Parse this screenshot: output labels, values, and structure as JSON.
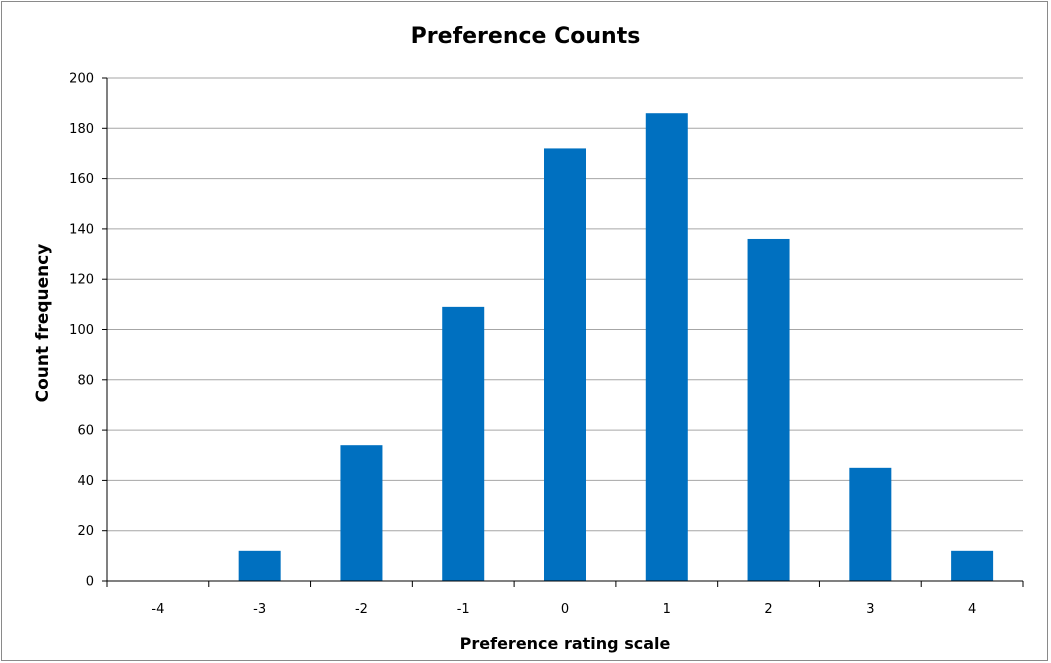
{
  "chart_data": {
    "type": "bar",
    "title": "Preference Counts",
    "xlabel": "Preference rating scale",
    "ylabel": "Count frequency",
    "categories": [
      "-4",
      "-3",
      "-2",
      "-1",
      "0",
      "1",
      "2",
      "3",
      "4"
    ],
    "values": [
      0,
      12,
      54,
      109,
      172,
      186,
      136,
      45,
      12
    ],
    "ylim": [
      0,
      200
    ],
    "yticks": [
      0,
      20,
      40,
      60,
      80,
      100,
      120,
      140,
      160,
      180,
      200
    ],
    "grid": true,
    "bar_color": "#0070C0",
    "grid_color": "#a6a6a6"
  }
}
